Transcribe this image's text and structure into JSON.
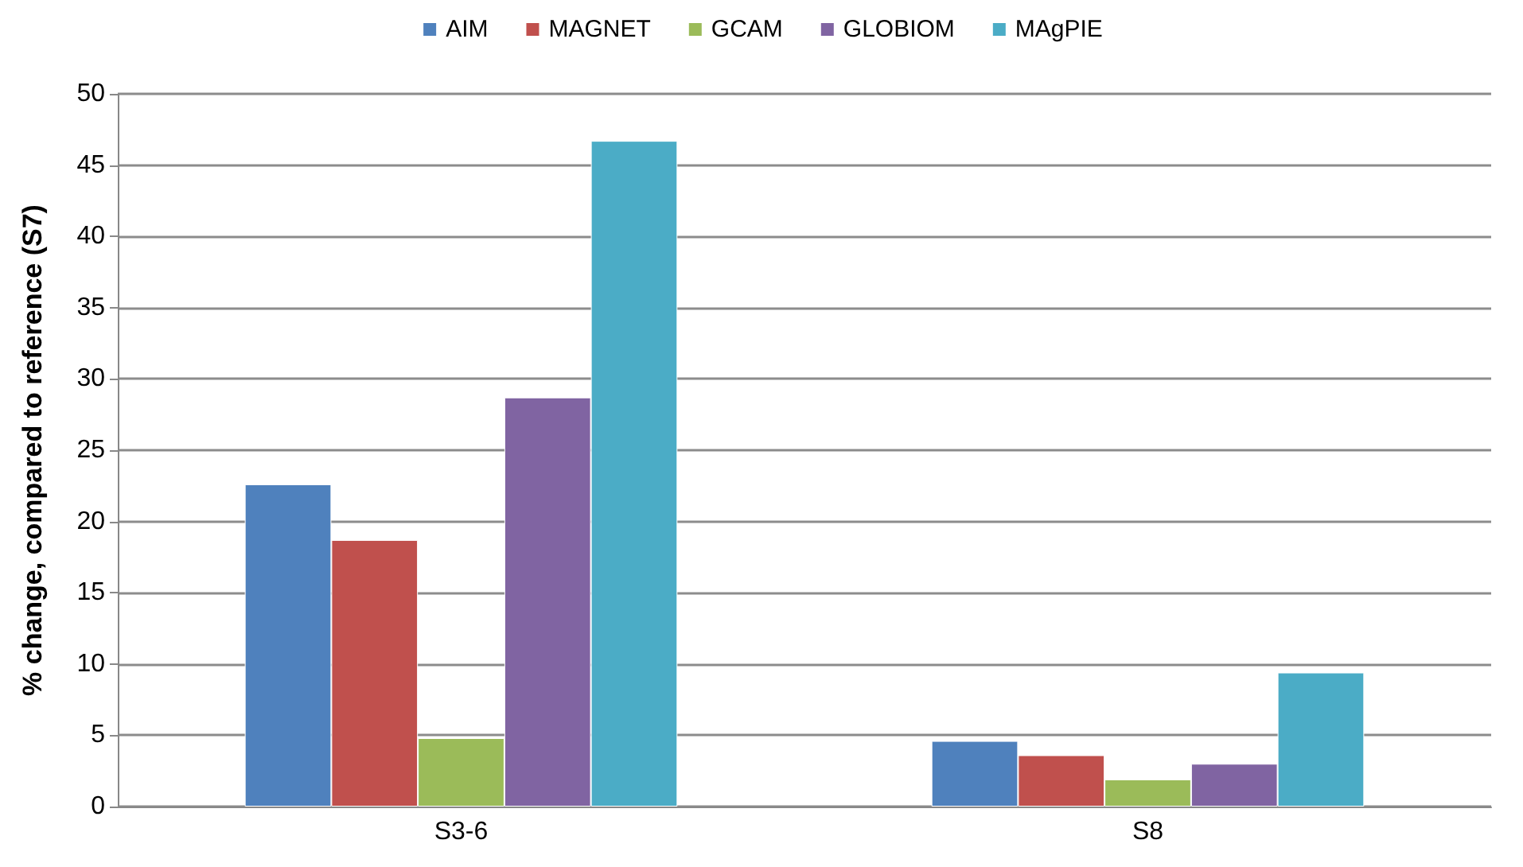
{
  "chart_data": {
    "type": "bar",
    "ylabel": "% change, compared to reference (S7)",
    "categories": [
      "S3-6",
      "S8"
    ],
    "series": [
      {
        "name": "AIM",
        "color": "#4f81bd",
        "values": [
          22.6,
          4.6
        ]
      },
      {
        "name": "MAGNET",
        "color": "#c0504d",
        "values": [
          18.7,
          3.6
        ]
      },
      {
        "name": "GCAM",
        "color": "#9bbb59",
        "values": [
          4.8,
          1.9
        ]
      },
      {
        "name": "GLOBIOM",
        "color": "#8064a2",
        "values": [
          28.7,
          3.0
        ]
      },
      {
        "name": "MAgPIE",
        "color": "#4bacc6",
        "values": [
          46.7,
          9.4
        ]
      }
    ],
    "ylim": [
      0,
      50
    ],
    "yticks": [
      0,
      5,
      10,
      15,
      20,
      25,
      30,
      35,
      40,
      45,
      50
    ],
    "grid": "y",
    "legend": "top"
  }
}
